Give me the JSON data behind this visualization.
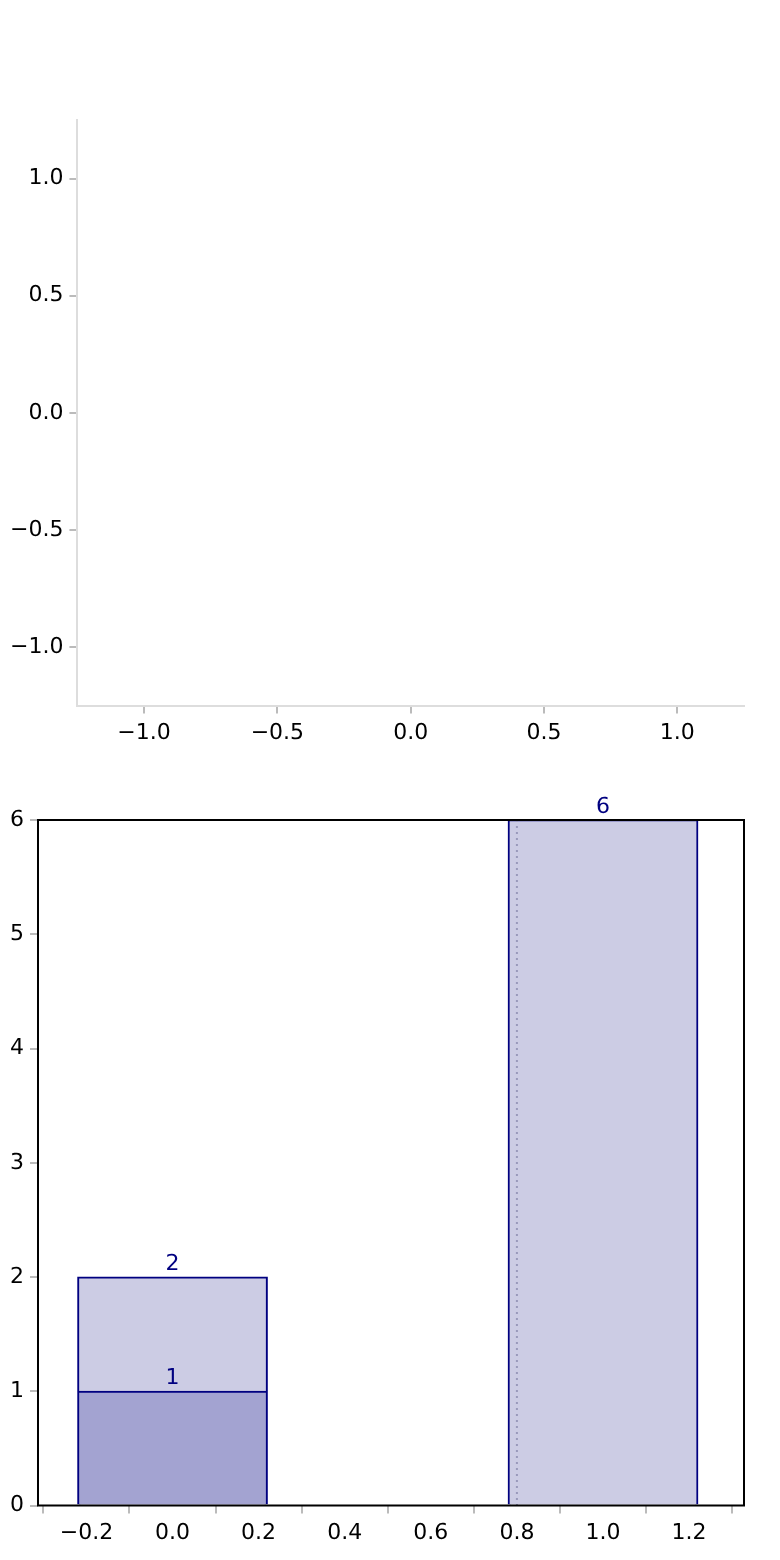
{
  "chart_data": [
    {
      "type": "scatter",
      "xlim": [
        -1.25,
        1.25
      ],
      "ylim": [
        -1.25,
        1.25
      ],
      "xticks": [
        {
          "value": -1,
          "label": "−1.0"
        },
        {
          "value": -0.5,
          "label": "−0.5"
        },
        {
          "value": 0,
          "label": "0.0"
        },
        {
          "value": 0.5,
          "label": "0.5"
        },
        {
          "value": 1,
          "label": "1.0"
        }
      ],
      "yticks": [
        {
          "value": -1,
          "label": "−1.0"
        },
        {
          "value": -0.5,
          "label": "−0.5"
        },
        {
          "value": 0,
          "label": "0.0"
        },
        {
          "value": 0.5,
          "label": "0.5"
        },
        {
          "value": 1,
          "label": "1.0"
        }
      ],
      "grid": false,
      "legend": false
    },
    {
      "type": "bar",
      "x": [
        0,
        1
      ],
      "stacked": true,
      "series": [
        {
          "color": "#a3a3d1",
          "values": [
            1,
            null
          ],
          "value_labels": [
            "1",
            null
          ]
        },
        {
          "color": "#cccce4",
          "values": [
            1,
            6
          ]
        }
      ],
      "totals": [
        "2",
        "6"
      ],
      "xlim": [
        -0.21,
        1.225
      ],
      "ylim": [
        0,
        6
      ],
      "xticks": [
        {
          "value": -0.2,
          "label": "−0.2"
        },
        {
          "value": 0,
          "label": "0.0"
        },
        {
          "value": 0.2,
          "label": "0.2"
        },
        {
          "value": 0.4,
          "label": "0.4"
        },
        {
          "value": 0.6,
          "label": "0.6"
        },
        {
          "value": 0.8,
          "label": "0.8"
        },
        {
          "value": 1,
          "label": "1.0"
        },
        {
          "value": 1.2,
          "label": "1.2"
        }
      ],
      "yticks": [
        0,
        1,
        2,
        3,
        4,
        5,
        6
      ],
      "ref_lines": [
        {
          "axis": "x",
          "value": 0.8,
          "color": "#9999bb",
          "line_style": "dotted"
        }
      ],
      "grid": false,
      "legend": false
    }
  ]
}
